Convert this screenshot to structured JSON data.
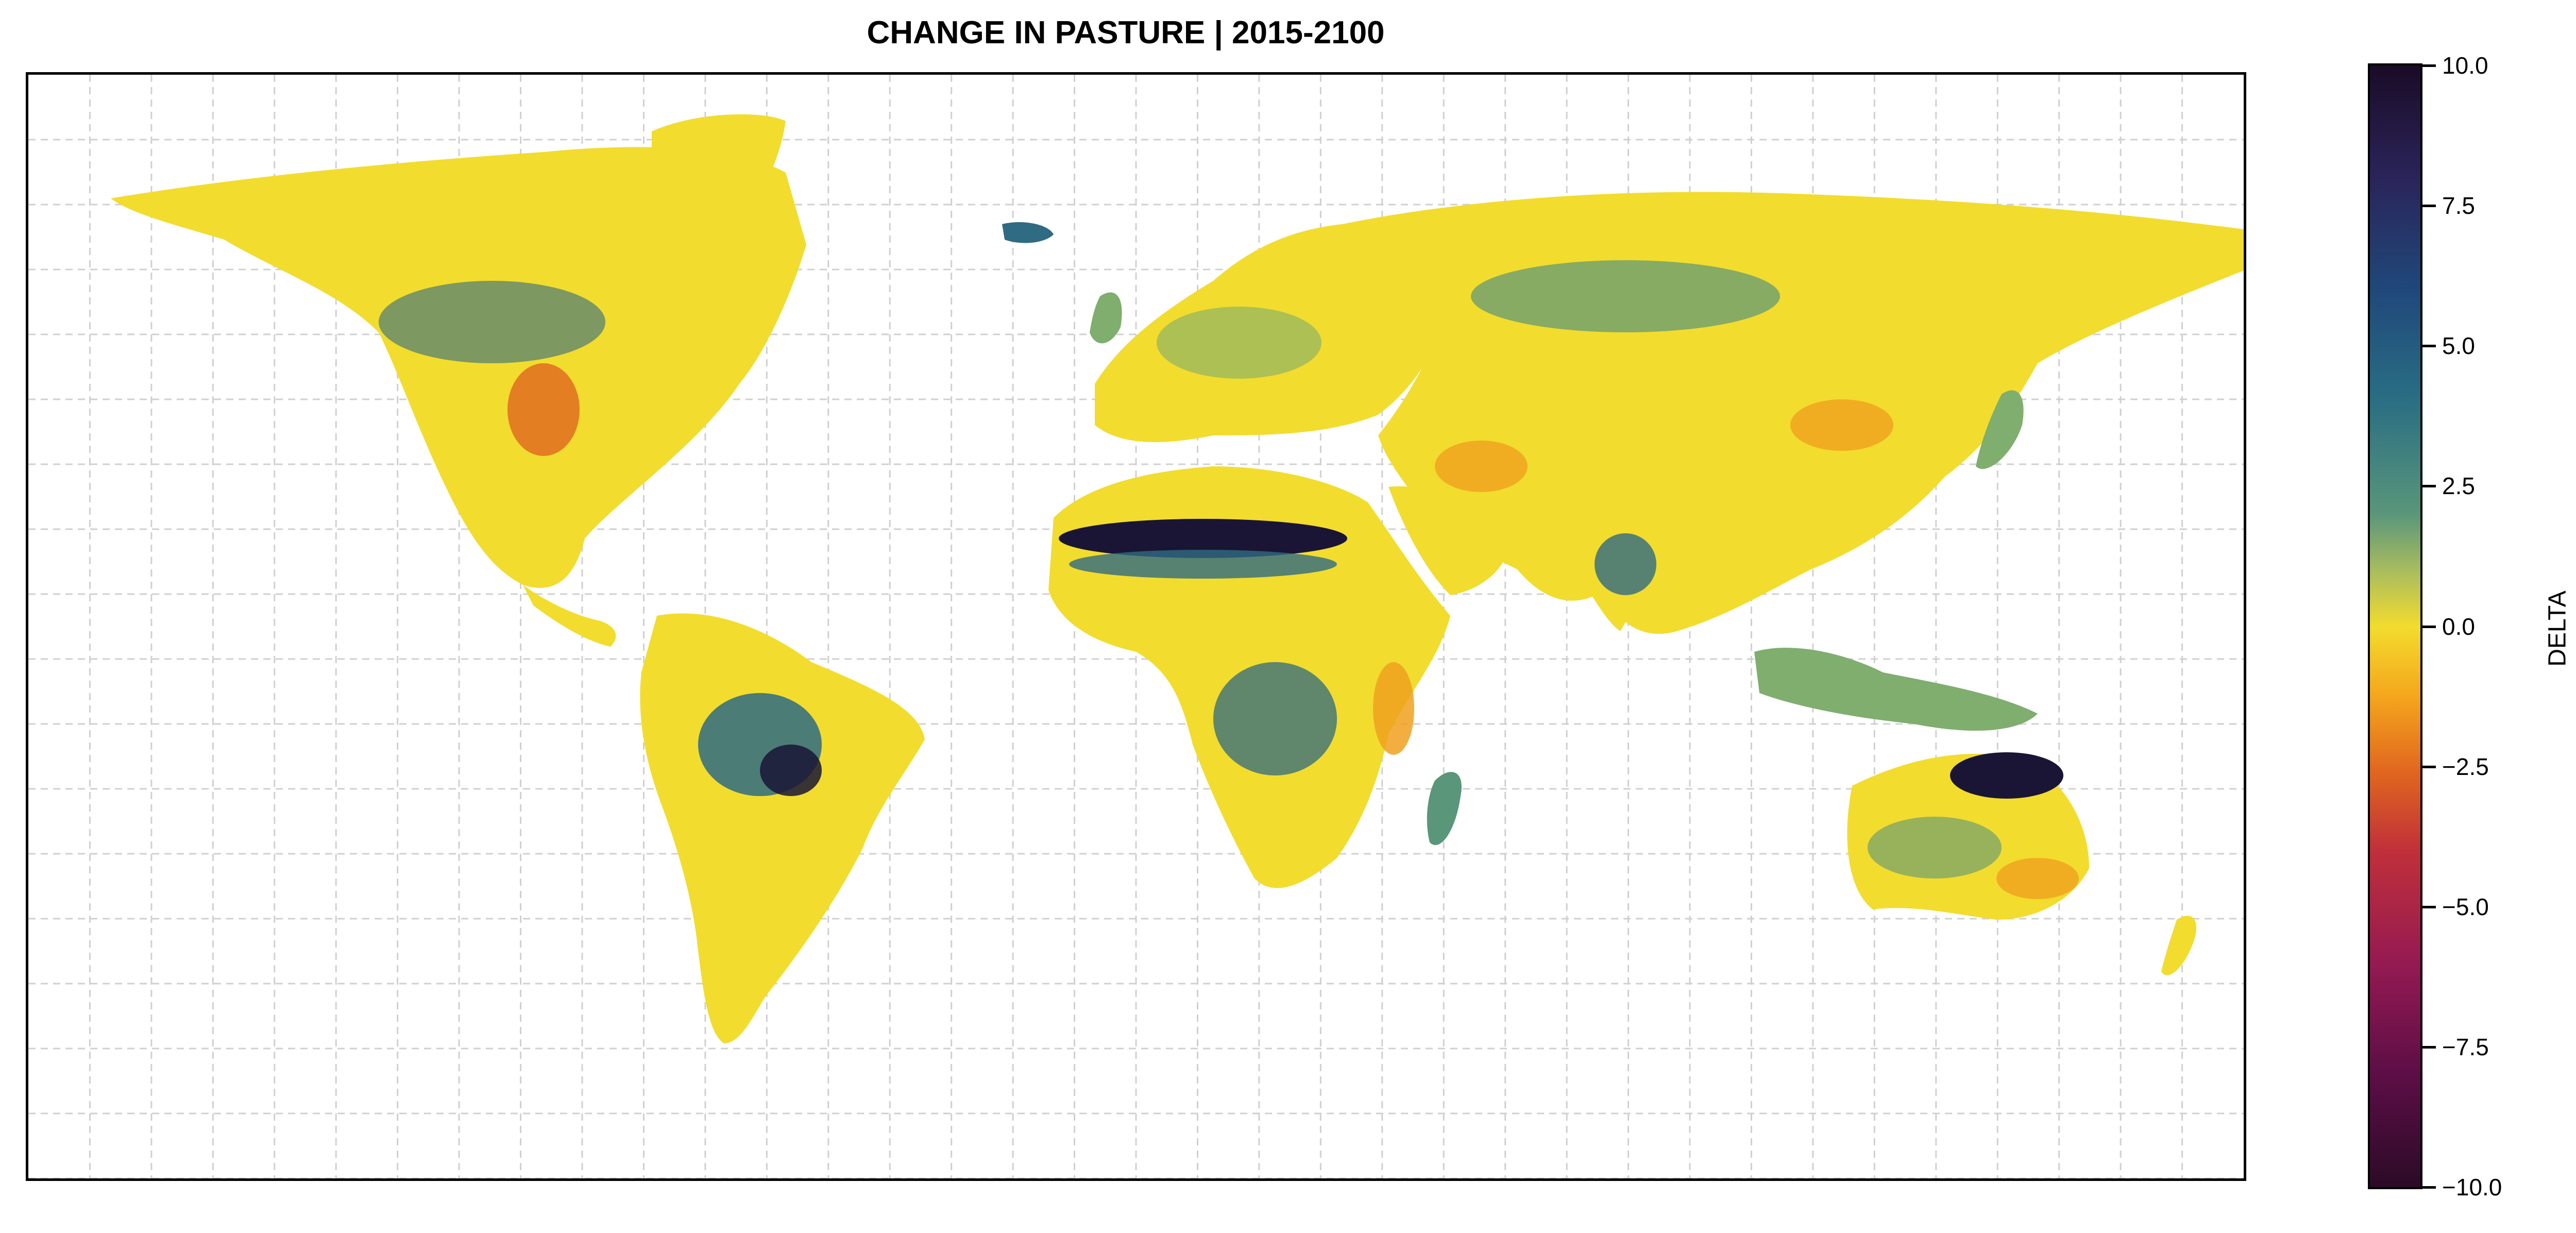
{
  "title": "CHANGE IN PASTURE | 2015-2100",
  "colorbar": {
    "label": "DELTA",
    "ticks": [
      {
        "value": 10.0,
        "label": "10.0"
      },
      {
        "value": 7.5,
        "label": "7.5"
      },
      {
        "value": 5.0,
        "label": "5.0"
      },
      {
        "value": 2.5,
        "label": "2.5"
      },
      {
        "value": 0.0,
        "label": "0.0"
      },
      {
        "value": -2.5,
        "label": "−2.5"
      },
      {
        "value": -5.0,
        "label": "−5.0"
      },
      {
        "value": -7.5,
        "label": "−7.5"
      },
      {
        "value": -10.0,
        "label": "−10.0"
      }
    ],
    "range": [
      -10.0,
      10.0
    ],
    "colormap": [
      "#1a0b26",
      "#20487a",
      "#5a967a",
      "#f2dc2e",
      "#e0661f",
      "#951a52",
      "#2b0b26"
    ]
  },
  "map": {
    "projection": "equirectangular",
    "gridlines": "dashed",
    "land_base_color": "#f2dc2e",
    "colors": {
      "high_positive": "#1a1535",
      "positive": "#2f6b82",
      "mild_positive": "#7fae6e",
      "neutral": "#f2dc2e",
      "negative": "#f0a11e",
      "strong_negative": "#e0661f"
    }
  }
}
